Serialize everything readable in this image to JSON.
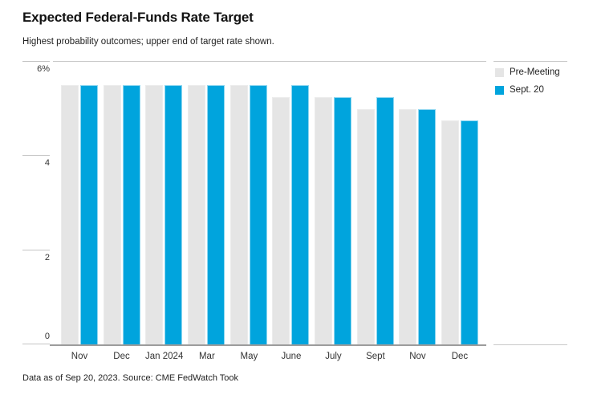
{
  "chart_data": {
    "type": "bar",
    "title": "Expected Federal-Funds Rate Target",
    "subtitle": "Highest probability outcomes; upper end of target rate shown.",
    "categories": [
      "Nov",
      "Dec",
      "Jan 2024",
      "Mar",
      "May",
      "June",
      "July",
      "Sept",
      "Nov",
      "Dec"
    ],
    "series": [
      {
        "name": "Pre-Meeting",
        "color": "#e5e5e5",
        "border_color": "#ececec",
        "values": [
          5.5,
          5.5,
          5.5,
          5.5,
          5.5,
          5.25,
          5.25,
          5.0,
          5.0,
          4.75
        ]
      },
      {
        "name": "Sept. 20",
        "color": "#00a4dd",
        "border_color": "#8ed7f0",
        "values": [
          5.5,
          5.5,
          5.5,
          5.5,
          5.5,
          5.5,
          5.25,
          5.25,
          5.0,
          4.75
        ]
      }
    ],
    "ylabel": "",
    "xlabel": "",
    "ylim": [
      0,
      6
    ],
    "yticks": [
      {
        "label": "6%",
        "value": 6
      },
      {
        "label": "4",
        "value": 4
      },
      {
        "label": "2",
        "value": 2
      },
      {
        "label": "0",
        "value": 0
      }
    ],
    "unit": "%",
    "grid": false,
    "legend_position": "right"
  },
  "footer": {
    "source_note": "Data as of Sep 20, 2023. Source: CME FedWatch Took"
  },
  "colors": {
    "accent_blue": "#00a4dd",
    "bar_gray": "#e5e5e5",
    "rule_light": "#c9c9c9",
    "axis_dark": "#9c9c9c"
  }
}
